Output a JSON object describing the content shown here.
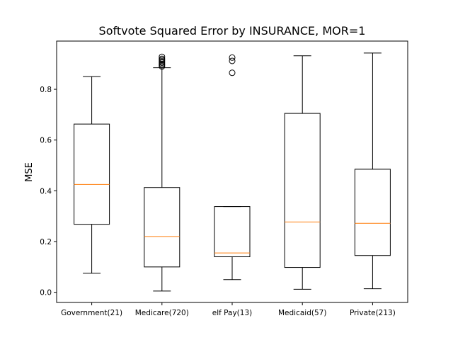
{
  "chart_data": {
    "type": "box",
    "title": "Softvote Squared Error by INSURANCE, MOR=1",
    "xlabel": "",
    "ylabel": "MSE",
    "ylim": [
      -0.04,
      0.99
    ],
    "yticks": [
      "0.0",
      "0.2",
      "0.4",
      "0.6",
      "0.8"
    ],
    "grid": false,
    "colors": {
      "box": "#000000",
      "median": "#ff7f0e",
      "background": "#ffffff"
    },
    "categories": [
      "Government(21)",
      "Medicare(720)",
      "elf Pay(13)",
      "Medicaid(57)",
      "Private(213)"
    ],
    "boxes": [
      {
        "whisker_low": 0.075,
        "q1": 0.268,
        "median": 0.425,
        "q3": 0.663,
        "whisker_high": 0.85,
        "outliers": []
      },
      {
        "whisker_low": 0.005,
        "q1": 0.1,
        "median": 0.22,
        "q3": 0.413,
        "whisker_high": 0.885,
        "outliers": [
          0.89,
          0.895,
          0.9,
          0.905,
          0.91,
          0.915,
          0.92,
          0.928
        ]
      },
      {
        "whisker_low": 0.05,
        "q1": 0.14,
        "median": 0.155,
        "q3": 0.338,
        "whisker_high": 0.338,
        "outliers": [
          0.865,
          0.912,
          0.925
        ]
      },
      {
        "whisker_low": 0.012,
        "q1": 0.098,
        "median": 0.277,
        "q3": 0.705,
        "whisker_high": 0.932,
        "outliers": []
      },
      {
        "whisker_low": 0.014,
        "q1": 0.145,
        "median": 0.272,
        "q3": 0.485,
        "whisker_high": 0.943,
        "outliers": []
      }
    ]
  }
}
